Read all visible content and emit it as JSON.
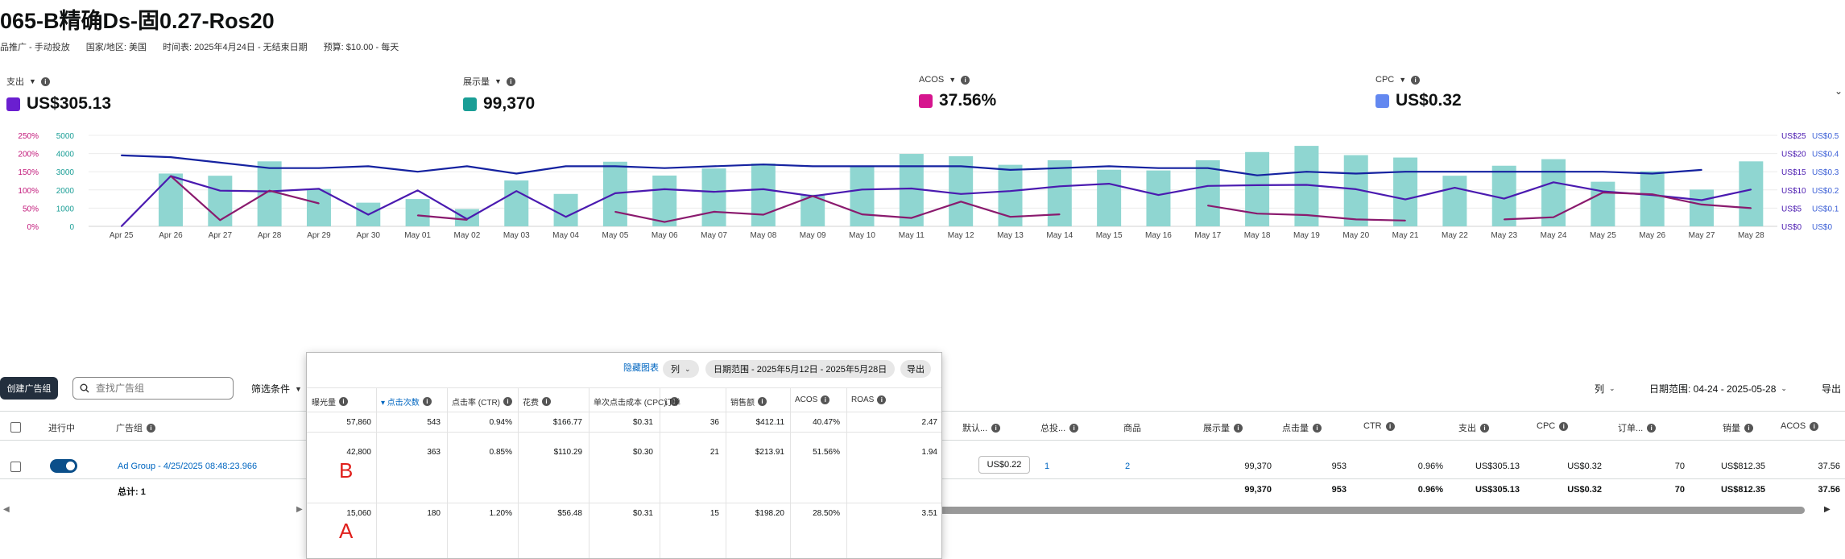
{
  "header": {
    "title": "065-B精确Ds-固0.27-Ros20",
    "campaign_type": "品推广 - 手动投放",
    "country": "国家/地区: 美国",
    "schedule": "时间表: 2025年4月24日 - 无结束日期",
    "budget": "预算: $10.00 - 每天"
  },
  "metrics": [
    {
      "label": "支出",
      "value": "US$305.13",
      "color": "#6a1fd0"
    },
    {
      "label": "展示量",
      "value": "99,370",
      "color": "#1a9e96"
    },
    {
      "label": "ACOS",
      "value": "37.56%",
      "color": "#d6158e"
    },
    {
      "label": "CPC",
      "value": "US$0.32",
      "color": "#6388f0"
    }
  ],
  "chart_data": {
    "type": "bar",
    "categories": [
      "Apr 25",
      "Apr 26",
      "Apr 27",
      "Apr 28",
      "Apr 29",
      "Apr 30",
      "May 01",
      "May 02",
      "May 03",
      "May 04",
      "May 05",
      "May 06",
      "May 07",
      "May 08",
      "May 09",
      "May 10",
      "May 11",
      "May 12",
      "May 13",
      "May 14",
      "May 15",
      "May 16",
      "May 17",
      "May 18",
      "May 19",
      "May 20",
      "May 21",
      "May 22",
      "May 23",
      "May 24",
      "May 25",
      "May 26",
      "May 27",
      "May 28"
    ],
    "axes": {
      "left_acos": {
        "ticks": [
          "0%",
          "50%",
          "100%",
          "150%",
          "200%",
          "250%"
        ],
        "range": [
          0,
          250
        ]
      },
      "left_impressions": {
        "ticks": [
          "0",
          "1000",
          "2000",
          "3000",
          "4000",
          "5000"
        ],
        "range": [
          0,
          5000
        ]
      },
      "right_spend": {
        "ticks": [
          "US$0",
          "US$5",
          "US$10",
          "US$15",
          "US$20",
          "US$25"
        ],
        "range": [
          0,
          25
        ]
      },
      "right_cpc": {
        "ticks": [
          "US$0",
          "US$0.1",
          "US$0.2",
          "US$0.3",
          "US$0.4",
          "US$0.5"
        ],
        "range": [
          0,
          0.5
        ]
      }
    },
    "grid": true,
    "series": [
      {
        "name": "展示量",
        "type": "bar",
        "color": "#8fd6d1",
        "values": [
          0,
          2900,
          2780,
          3570,
          2050,
          1300,
          1500,
          950,
          2520,
          1780,
          3550,
          2790,
          3180,
          3450,
          1740,
          3300,
          3980,
          3850,
          3380,
          3630,
          3110,
          3070,
          3630,
          4080,
          4420,
          3910,
          3780,
          2780,
          3330,
          3690,
          2450,
          3030,
          2020,
          3570
        ]
      },
      {
        "name": "CPC",
        "type": "line",
        "color": "#1522a0",
        "values": [
          0.39,
          0.38,
          0.35,
          0.32,
          0.32,
          0.33,
          0.3,
          0.33,
          0.29,
          0.33,
          0.33,
          0.32,
          0.33,
          0.34,
          0.33,
          0.33,
          0.33,
          0.33,
          0.31,
          0.32,
          0.33,
          0.32,
          0.32,
          0.28,
          0.3,
          0.29,
          0.3,
          0.3,
          0.3,
          0.3,
          0.3,
          0.29,
          0.31,
          null
        ]
      },
      {
        "name": "支出",
        "type": "line",
        "color": "#4a1ab0",
        "values": [
          0,
          13.8,
          9.8,
          9.6,
          10.3,
          3.2,
          9.9,
          2.0,
          9.7,
          2.6,
          9.1,
          10.2,
          9.5,
          10.2,
          8.3,
          10.1,
          10.4,
          8.9,
          9.7,
          11.0,
          11.7,
          8.6,
          11.1,
          11.3,
          11.4,
          10.2,
          7.4,
          10.6,
          7.6,
          12.1,
          9.6,
          8.6,
          7.2,
          10.1
        ]
      },
      {
        "name": "ACOS",
        "type": "line",
        "color": "#8a1a6e",
        "values": [
          null,
          138,
          17,
          98,
          63,
          null,
          30,
          18,
          null,
          null,
          40,
          12,
          40,
          32,
          83,
          33,
          23,
          68,
          26,
          33,
          null,
          null,
          57,
          35,
          31,
          19,
          16,
          null,
          19,
          25,
          93,
          88,
          60,
          50
        ]
      }
    ]
  },
  "toolbar": {
    "create_label": "创建广告组",
    "search_placeholder": "查找广告组",
    "filter_label": "筛选条件",
    "columns_label": "列",
    "date_range_label": "日期范围: 04-24 - 2025-05-28",
    "export_label": "导出"
  },
  "table": {
    "headers": {
      "active": "进行中",
      "ad_group": "广告组",
      "default_bid": "默认...",
      "total_targets": "总投...",
      "products": "商品",
      "impressions": "展示量",
      "clicks": "点击量",
      "ctr": "CTR",
      "spend": "支出",
      "cpc": "CPC",
      "orders": "订单...",
      "sales": "销量",
      "acos": "ACOS"
    },
    "row": {
      "ad_group": "Ad Group - 4/25/2025 08:48:23.966",
      "default_bid": "US$0.22",
      "total_targets": "1",
      "products": "2",
      "impressions": "99,370",
      "clicks": "953",
      "ctr": "0.96%",
      "spend": "US$305.13",
      "cpc": "US$0.32",
      "orders": "70",
      "sales": "US$812.35",
      "acos": "37.56"
    },
    "total": {
      "label": "总计: 1",
      "impressions": "99,370",
      "clicks": "953",
      "ctr": "0.96%",
      "spend": "US$305.13",
      "cpc": "US$0.32",
      "orders": "70",
      "sales": "US$812.35",
      "acos": "37.56"
    }
  },
  "popup": {
    "hide_chart": "隐藏图表",
    "columns": "列",
    "date_range": "日期范围 - 2025年5月12日 - 2025年5月28日",
    "export": "导出",
    "headers": [
      "曝光量",
      "点击次数",
      "点击率 (CTR)",
      "花费",
      "单次点击成本 (CPC)",
      "订单",
      "销售额",
      "ACOS",
      "ROAS"
    ],
    "rows": [
      [
        "57,860",
        "543",
        "0.94%",
        "$166.77",
        "$0.31",
        "36",
        "$412.11",
        "40.47%",
        "2.47"
      ],
      [
        "42,800",
        "363",
        "0.85%",
        "$110.29",
        "$0.30",
        "21",
        "$213.91",
        "51.56%",
        "1.94"
      ],
      [
        "15,060",
        "180",
        "1.20%",
        "$56.48",
        "$0.31",
        "15",
        "$198.20",
        "28.50%",
        "3.51"
      ]
    ],
    "annotations": [
      "B",
      "A"
    ]
  }
}
